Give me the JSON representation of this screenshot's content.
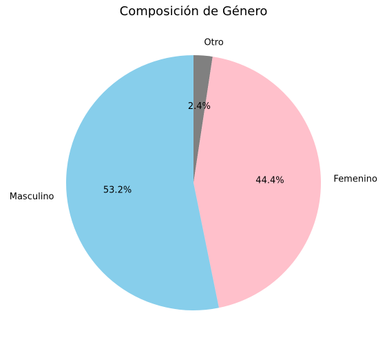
{
  "chart_data": {
    "type": "pie",
    "title": "Composición de Género",
    "start_angle_deg": 90,
    "direction": "clockwise",
    "slices": [
      {
        "label": "Otro",
        "value": 2.4,
        "pct_label": "2.4%",
        "color": "#808080"
      },
      {
        "label": "Femenino",
        "value": 44.4,
        "pct_label": "44.4%",
        "color": "#ffc0cb"
      },
      {
        "label": "Masculino",
        "value": 53.2,
        "pct_label": "53.2%",
        "color": "#87ceeb"
      }
    ]
  }
}
